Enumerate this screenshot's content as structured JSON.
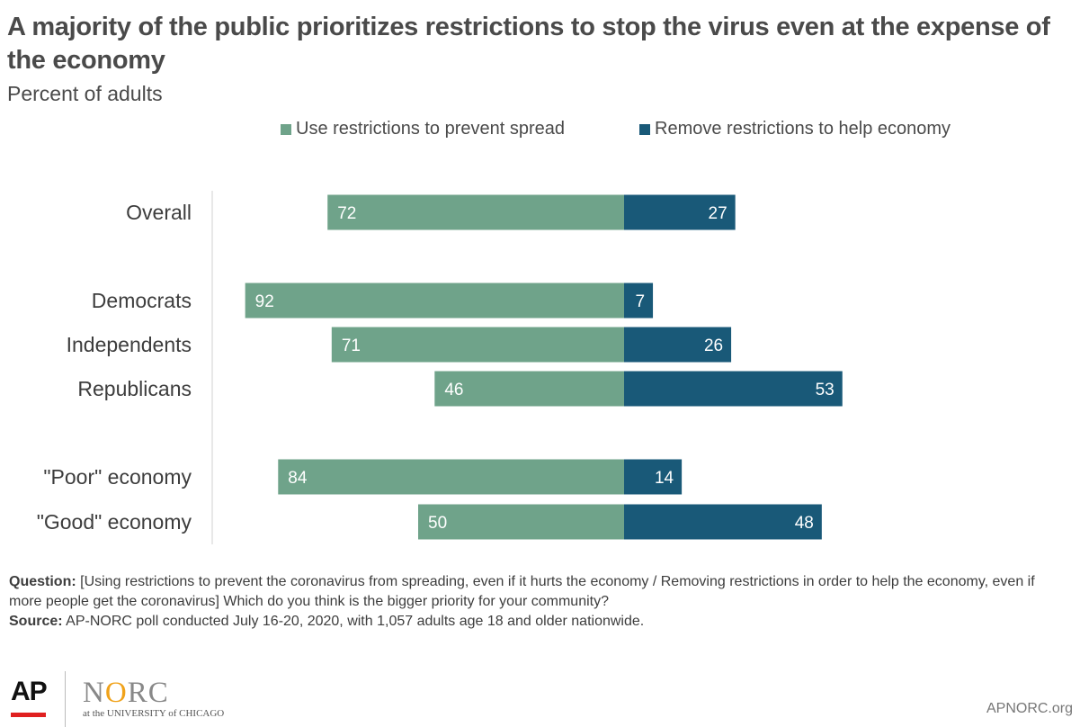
{
  "title": "A majority of the public prioritizes restrictions to stop the virus even at the expense of the economy",
  "subtitle": "Percent of adults",
  "legend": {
    "left_label": "Use restrictions to prevent spread",
    "right_label": "Remove restrictions to help economy"
  },
  "colors": {
    "left": "#6fa38a",
    "right": "#195978",
    "text": "#3d3d3d"
  },
  "chart_data": {
    "type": "bar",
    "orientation": "diverging-horizontal",
    "categories": [
      "Overall",
      "Democrats",
      "Independents",
      "Republicans",
      "\"Poor\" economy",
      "\"Good\" economy"
    ],
    "series": [
      {
        "name": "Use restrictions to prevent spread",
        "values": [
          72,
          92,
          71,
          46,
          84,
          50
        ]
      },
      {
        "name": "Remove restrictions to help economy",
        "values": [
          27,
          7,
          26,
          53,
          14,
          48
        ]
      }
    ],
    "title": "A majority of the public prioritizes restrictions to stop the virus even at the expense of the economy",
    "subtitle": "Percent of adults",
    "legend_position": "top",
    "grid": false
  },
  "footer": {
    "question_label": "Question:",
    "question_text": " [Using restrictions to prevent the coronavirus from spreading, even if it hurts the economy / Removing restrictions in order to help the economy, even if more people get the coronavirus] Which do you think is the bigger priority for your community?",
    "source_label": "Source:",
    "source_text": " AP-NORC poll conducted July 16-20, 2020, with 1,057 adults age 18 and older nationwide."
  },
  "logos": {
    "ap": "AP",
    "norc_n": "N",
    "norc_o": "O",
    "norc_rc": "RC",
    "uc": "at the UNIVERSITY of CHICAGO",
    "site": "APNORC.org"
  }
}
